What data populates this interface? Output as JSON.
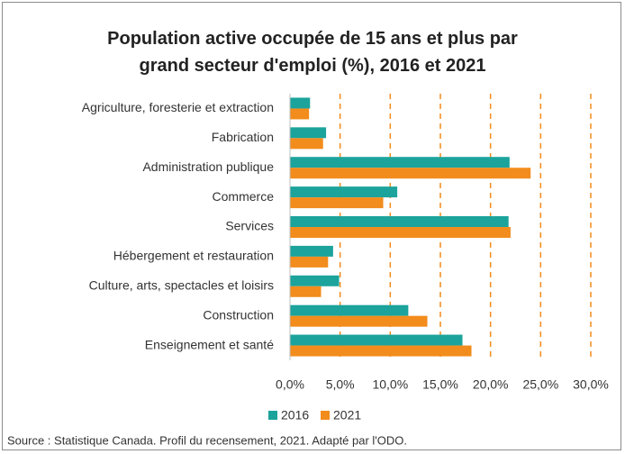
{
  "chart_data": {
    "type": "bar",
    "orientation": "horizontal",
    "title": "Population active occupée de 15 ans et plus par grand secteur d'emploi (%), 2016 et 2021",
    "categories": [
      "Agriculture, foresterie et extraction",
      "Fabrication",
      "Administration publique",
      "Commerce",
      "Services",
      "Hébergement et restauration",
      "Culture, arts, spectacles et loisirs",
      "Construction",
      "Enseignement et santé"
    ],
    "series": [
      {
        "name": "2016",
        "color": "#1ba39c",
        "values": [
          2.0,
          3.6,
          21.9,
          10.7,
          21.8,
          4.3,
          4.9,
          11.8,
          17.2
        ]
      },
      {
        "name": "2021",
        "color": "#f28c1c",
        "values": [
          1.9,
          3.3,
          24.0,
          9.3,
          22.0,
          3.8,
          3.1,
          13.7,
          18.1
        ]
      }
    ],
    "xlim": [
      0,
      30
    ],
    "xticks": [
      {
        "value": 0,
        "label": "0,0%"
      },
      {
        "value": 5,
        "label": "5,0%"
      },
      {
        "value": 10,
        "label": "10,0%"
      },
      {
        "value": 15,
        "label": "15,0%"
      },
      {
        "value": 20,
        "label": "20,0%"
      },
      {
        "value": 25,
        "label": "25,0%"
      },
      {
        "value": 30,
        "label": "30,0%"
      }
    ],
    "grid": true,
    "grid_color": "#f28c1c",
    "legend": "bottom",
    "source": "Source : Statistique Canada. Profil du recensement, 2021. Adapté par l'ODO."
  }
}
